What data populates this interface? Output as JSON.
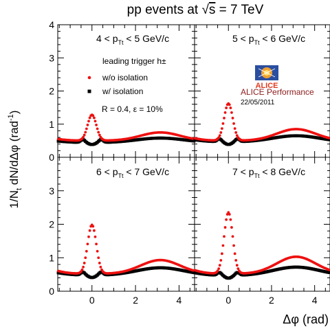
{
  "title": "pp events at √s = 7 TeV",
  "title_parts": {
    "prefix": "pp events at ",
    "root": "√",
    "rad": "s",
    "suffix": " = 7 TeV"
  },
  "ylabel": "1/Nₜ dN/dΔφ (rad⁻¹)",
  "ylabel_parts": {
    "a": "1/N",
    "sub": "t",
    "b": " dN/dΔφ (rad",
    "sup": "-1",
    "c": ")"
  },
  "xlabel": "Δφ (rad)",
  "colors": {
    "wo_isolation": "#ee1111",
    "w_isolation": "#000000",
    "alice": "#8b1a1a"
  },
  "chart_data": {
    "type": "scatter",
    "xlabel": "Δφ (rad)",
    "ylabel": "1/N_t dN/dΔφ (rad^-1)",
    "xlim": [
      -1.5708,
      4.7124
    ],
    "ylim": [
      0,
      4
    ],
    "x_ticks": [
      "0",
      "2",
      "4"
    ],
    "y_ticks": [
      "0",
      "1",
      "2",
      "3",
      "4"
    ],
    "grid": false,
    "legend": {
      "title": "leading trigger h±",
      "entries": [
        {
          "name": "w/o isolation",
          "color": "#ee1111"
        },
        {
          "name": "w/ isolation",
          "color": "#000000"
        }
      ],
      "parameters": "R = 0.4, ε = 10%"
    },
    "annotation": {
      "line1": "ALICE Performance",
      "line2": "22/05/2011"
    },
    "panels": [
      {
        "label": "4 < p_Tt < 5 GeV/c",
        "label_parts": {
          "a": "4 < p",
          "sub": "Tt",
          "b": " < 5 GeV/c"
        },
        "series": [
          {
            "name": "w/o isolation",
            "near_peak": 1.28,
            "away_peak": 0.75,
            "baseline": 0.5
          },
          {
            "name": "w/ isolation",
            "near_peak": 0.38,
            "away_peak": 0.58,
            "baseline": 0.44
          }
        ]
      },
      {
        "label": "5 < p_Tt < 6 GeV/c",
        "label_parts": {
          "a": "5 < p",
          "sub": "Tt",
          "b": " < 6 GeV/c"
        },
        "series": [
          {
            "name": "w/o isolation",
            "near_peak": 1.62,
            "away_peak": 0.85,
            "baseline": 0.5
          },
          {
            "name": "w/ isolation",
            "near_peak": 0.38,
            "away_peak": 0.65,
            "baseline": 0.46
          }
        ]
      },
      {
        "label": "6 < p_Tt < 7 GeV/c",
        "label_parts": {
          "a": "6 < p",
          "sub": "Tt",
          "b": " < 7 GeV/c"
        },
        "series": [
          {
            "name": "w/o isolation",
            "near_peak": 1.98,
            "away_peak": 0.93,
            "baseline": 0.52
          },
          {
            "name": "w/ isolation",
            "near_peak": 0.4,
            "away_peak": 0.7,
            "baseline": 0.47
          }
        ]
      },
      {
        "label": "7 < p_Tt < 8 GeV/c",
        "label_parts": {
          "a": "7 < p",
          "sub": "Tt",
          "b": " < 8 GeV/c"
        },
        "series": [
          {
            "name": "w/o isolation",
            "near_peak": 2.35,
            "away_peak": 1.03,
            "baseline": 0.52
          },
          {
            "name": "w/ isolation",
            "near_peak": 0.38,
            "away_peak": 0.72,
            "baseline": 0.46
          }
        ]
      }
    ]
  }
}
